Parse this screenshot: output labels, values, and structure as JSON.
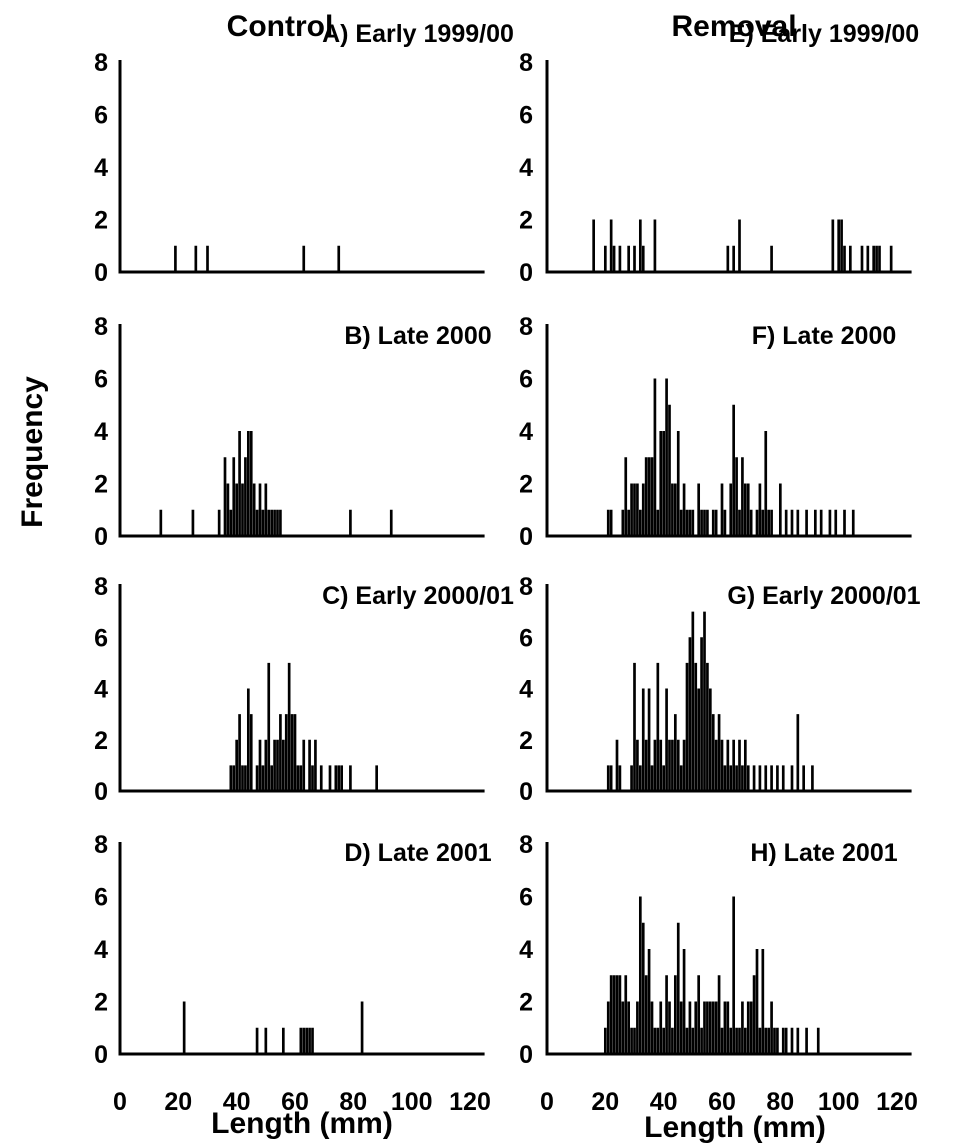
{
  "column_titles": [
    "Control",
    "Removal"
  ],
  "ylabel": "Frequency",
  "xlabel": "Length (mm)",
  "colors": {
    "bar": "#000000",
    "axis": "#000000",
    "background": "#ffffff"
  },
  "chart_data": [
    {
      "type": "bar",
      "label": "A)",
      "title": "Early 1999/00",
      "xlim": [
        0,
        125
      ],
      "ylim": [
        0,
        8
      ],
      "xticks": [
        0,
        20,
        40,
        60,
        80,
        100,
        120
      ],
      "yticks": [
        0,
        2,
        4,
        6,
        8
      ],
      "show_xticks": false,
      "points": [
        [
          19,
          1
        ],
        [
          26,
          1
        ],
        [
          30,
          1
        ],
        [
          63,
          1
        ],
        [
          75,
          1
        ]
      ]
    },
    {
      "type": "bar",
      "label": "B)",
      "title": "Late 2000",
      "xlim": [
        0,
        125
      ],
      "ylim": [
        0,
        8
      ],
      "xticks": [
        0,
        20,
        40,
        60,
        80,
        100,
        120
      ],
      "yticks": [
        0,
        2,
        4,
        6,
        8
      ],
      "show_xticks": false,
      "points": [
        [
          14,
          1
        ],
        [
          25,
          1
        ],
        [
          34,
          1
        ],
        [
          36,
          3
        ],
        [
          37,
          2
        ],
        [
          38,
          1
        ],
        [
          39,
          3
        ],
        [
          40,
          2
        ],
        [
          41,
          4
        ],
        [
          42,
          2
        ],
        [
          43,
          3
        ],
        [
          44,
          4
        ],
        [
          45,
          4
        ],
        [
          46,
          2
        ],
        [
          47,
          1
        ],
        [
          48,
          2
        ],
        [
          49,
          1
        ],
        [
          50,
          2
        ],
        [
          51,
          1
        ],
        [
          52,
          1
        ],
        [
          53,
          1
        ],
        [
          54,
          1
        ],
        [
          55,
          1
        ],
        [
          79,
          1
        ],
        [
          93,
          1
        ]
      ]
    },
    {
      "type": "bar",
      "label": "C)",
      "title": "Early 2000/01",
      "xlim": [
        0,
        125
      ],
      "ylim": [
        0,
        8
      ],
      "xticks": [
        0,
        20,
        40,
        60,
        80,
        100,
        120
      ],
      "yticks": [
        0,
        2,
        4,
        6,
        8
      ],
      "show_xticks": false,
      "points": [
        [
          38,
          1
        ],
        [
          39,
          1
        ],
        [
          40,
          2
        ],
        [
          41,
          3
        ],
        [
          42,
          1
        ],
        [
          43,
          1
        ],
        [
          44,
          4
        ],
        [
          45,
          3
        ],
        [
          47,
          1
        ],
        [
          48,
          2
        ],
        [
          49,
          1
        ],
        [
          50,
          2
        ],
        [
          51,
          5
        ],
        [
          52,
          1
        ],
        [
          53,
          2
        ],
        [
          54,
          2
        ],
        [
          55,
          3
        ],
        [
          56,
          2
        ],
        [
          57,
          3
        ],
        [
          58,
          5
        ],
        [
          59,
          3
        ],
        [
          60,
          3
        ],
        [
          61,
          1
        ],
        [
          62,
          1
        ],
        [
          63,
          2
        ],
        [
          65,
          2
        ],
        [
          66,
          1
        ],
        [
          67,
          2
        ],
        [
          69,
          1
        ],
        [
          72,
          1
        ],
        [
          74,
          1
        ],
        [
          75,
          1
        ],
        [
          76,
          1
        ],
        [
          79,
          1
        ],
        [
          88,
          1
        ]
      ]
    },
    {
      "type": "bar",
      "label": "D)",
      "title": "Late 2001",
      "xlim": [
        0,
        125
      ],
      "ylim": [
        0,
        8
      ],
      "xticks": [
        0,
        20,
        40,
        60,
        80,
        100,
        120
      ],
      "yticks": [
        0,
        2,
        4,
        6,
        8
      ],
      "show_xticks": true,
      "points": [
        [
          22,
          2
        ],
        [
          47,
          1
        ],
        [
          50,
          1
        ],
        [
          56,
          1
        ],
        [
          62,
          1
        ],
        [
          63,
          1
        ],
        [
          64,
          1
        ],
        [
          65,
          1
        ],
        [
          66,
          1
        ],
        [
          83,
          2
        ]
      ]
    },
    {
      "type": "bar",
      "label": "E)",
      "title": "Early 1999/00",
      "xlim": [
        0,
        125
      ],
      "ylim": [
        0,
        8
      ],
      "xticks": [
        0,
        20,
        40,
        60,
        80,
        100,
        120
      ],
      "yticks": [
        0,
        2,
        4,
        6,
        8
      ],
      "show_xticks": false,
      "points": [
        [
          16,
          2
        ],
        [
          20,
          1
        ],
        [
          22,
          2
        ],
        [
          23,
          1
        ],
        [
          25,
          1
        ],
        [
          28,
          1
        ],
        [
          30,
          1
        ],
        [
          32,
          2
        ],
        [
          33,
          1
        ],
        [
          37,
          2
        ],
        [
          62,
          1
        ],
        [
          64,
          1
        ],
        [
          66,
          2
        ],
        [
          77,
          1
        ],
        [
          98,
          2
        ],
        [
          100,
          2
        ],
        [
          101,
          2
        ],
        [
          102,
          1
        ],
        [
          104,
          1
        ],
        [
          108,
          1
        ],
        [
          110,
          1
        ],
        [
          112,
          1
        ],
        [
          113,
          1
        ],
        [
          114,
          1
        ],
        [
          118,
          1
        ]
      ]
    },
    {
      "type": "bar",
      "label": "F)",
      "title": "Late 2000",
      "xlim": [
        0,
        125
      ],
      "ylim": [
        0,
        8
      ],
      "xticks": [
        0,
        20,
        40,
        60,
        80,
        100,
        120
      ],
      "yticks": [
        0,
        2,
        4,
        6,
        8
      ],
      "show_xticks": false,
      "points": [
        [
          21,
          1
        ],
        [
          22,
          1
        ],
        [
          26,
          1
        ],
        [
          27,
          3
        ],
        [
          28,
          1
        ],
        [
          29,
          2
        ],
        [
          30,
          2
        ],
        [
          31,
          2
        ],
        [
          32,
          1
        ],
        [
          33,
          2
        ],
        [
          34,
          3
        ],
        [
          35,
          3
        ],
        [
          36,
          3
        ],
        [
          37,
          6
        ],
        [
          38,
          1
        ],
        [
          39,
          4
        ],
        [
          40,
          4
        ],
        [
          41,
          6
        ],
        [
          42,
          5
        ],
        [
          43,
          2
        ],
        [
          44,
          2
        ],
        [
          45,
          4
        ],
        [
          46,
          1
        ],
        [
          47,
          2
        ],
        [
          48,
          1
        ],
        [
          49,
          1
        ],
        [
          50,
          1
        ],
        [
          52,
          2
        ],
        [
          53,
          1
        ],
        [
          54,
          1
        ],
        [
          55,
          1
        ],
        [
          57,
          1
        ],
        [
          58,
          1
        ],
        [
          60,
          2
        ],
        [
          61,
          1
        ],
        [
          63,
          2
        ],
        [
          64,
          5
        ],
        [
          65,
          3
        ],
        [
          66,
          1
        ],
        [
          67,
          3
        ],
        [
          68,
          2
        ],
        [
          69,
          2
        ],
        [
          70,
          1
        ],
        [
          72,
          1
        ],
        [
          73,
          2
        ],
        [
          74,
          1
        ],
        [
          75,
          4
        ],
        [
          76,
          1
        ],
        [
          77,
          1
        ],
        [
          80,
          2
        ],
        [
          82,
          1
        ],
        [
          84,
          1
        ],
        [
          86,
          1
        ],
        [
          89,
          1
        ],
        [
          92,
          1
        ],
        [
          94,
          1
        ],
        [
          97,
          1
        ],
        [
          99,
          1
        ],
        [
          102,
          1
        ],
        [
          105,
          1
        ]
      ]
    },
    {
      "type": "bar",
      "label": "G)",
      "title": "Early 2000/01",
      "xlim": [
        0,
        125
      ],
      "ylim": [
        0,
        8
      ],
      "xticks": [
        0,
        20,
        40,
        60,
        80,
        100,
        120
      ],
      "yticks": [
        0,
        2,
        4,
        6,
        8
      ],
      "show_xticks": false,
      "points": [
        [
          21,
          1
        ],
        [
          22,
          1
        ],
        [
          24,
          2
        ],
        [
          25,
          1
        ],
        [
          29,
          1
        ],
        [
          30,
          5
        ],
        [
          31,
          2
        ],
        [
          32,
          1
        ],
        [
          33,
          4
        ],
        [
          34,
          2
        ],
        [
          35,
          4
        ],
        [
          36,
          1
        ],
        [
          37,
          2
        ],
        [
          38,
          5
        ],
        [
          39,
          2
        ],
        [
          40,
          1
        ],
        [
          41,
          4
        ],
        [
          42,
          2
        ],
        [
          43,
          2
        ],
        [
          44,
          3
        ],
        [
          45,
          2
        ],
        [
          46,
          1
        ],
        [
          47,
          2
        ],
        [
          48,
          5
        ],
        [
          49,
          6
        ],
        [
          50,
          7
        ],
        [
          51,
          5
        ],
        [
          52,
          4
        ],
        [
          53,
          6
        ],
        [
          54,
          7
        ],
        [
          55,
          5
        ],
        [
          56,
          4
        ],
        [
          57,
          3
        ],
        [
          58,
          2
        ],
        [
          59,
          3
        ],
        [
          60,
          2
        ],
        [
          61,
          1
        ],
        [
          62,
          2
        ],
        [
          63,
          1
        ],
        [
          64,
          2
        ],
        [
          65,
          1
        ],
        [
          66,
          2
        ],
        [
          67,
          1
        ],
        [
          68,
          2
        ],
        [
          69,
          1
        ],
        [
          71,
          1
        ],
        [
          73,
          1
        ],
        [
          75,
          1
        ],
        [
          77,
          1
        ],
        [
          79,
          1
        ],
        [
          81,
          1
        ],
        [
          84,
          1
        ],
        [
          86,
          3
        ],
        [
          88,
          1
        ],
        [
          91,
          1
        ]
      ]
    },
    {
      "type": "bar",
      "label": "H)",
      "title": "Late 2001",
      "xlim": [
        0,
        125
      ],
      "ylim": [
        0,
        8
      ],
      "xticks": [
        0,
        20,
        40,
        60,
        80,
        100,
        120
      ],
      "yticks": [
        0,
        2,
        4,
        6,
        8
      ],
      "show_xticks": true,
      "points": [
        [
          20,
          1
        ],
        [
          21,
          2
        ],
        [
          22,
          3
        ],
        [
          23,
          3
        ],
        [
          24,
          3
        ],
        [
          25,
          3
        ],
        [
          26,
          2
        ],
        [
          27,
          3
        ],
        [
          28,
          2
        ],
        [
          29,
          1
        ],
        [
          30,
          1
        ],
        [
          31,
          2
        ],
        [
          32,
          6
        ],
        [
          33,
          5
        ],
        [
          34,
          3
        ],
        [
          35,
          4
        ],
        [
          36,
          2
        ],
        [
          37,
          1
        ],
        [
          38,
          1
        ],
        [
          39,
          2
        ],
        [
          40,
          1
        ],
        [
          41,
          3
        ],
        [
          42,
          2
        ],
        [
          43,
          1
        ],
        [
          44,
          3
        ],
        [
          45,
          5
        ],
        [
          46,
          2
        ],
        [
          47,
          4
        ],
        [
          48,
          1
        ],
        [
          49,
          2
        ],
        [
          50,
          1
        ],
        [
          51,
          2
        ],
        [
          52,
          3
        ],
        [
          53,
          1
        ],
        [
          54,
          2
        ],
        [
          55,
          2
        ],
        [
          56,
          2
        ],
        [
          57,
          2
        ],
        [
          58,
          2
        ],
        [
          59,
          3
        ],
        [
          60,
          1
        ],
        [
          61,
          2
        ],
        [
          62,
          2
        ],
        [
          63,
          1
        ],
        [
          64,
          6
        ],
        [
          65,
          1
        ],
        [
          66,
          1
        ],
        [
          67,
          2
        ],
        [
          68,
          1
        ],
        [
          69,
          2
        ],
        [
          70,
          2
        ],
        [
          71,
          3
        ],
        [
          72,
          4
        ],
        [
          73,
          1
        ],
        [
          74,
          4
        ],
        [
          75,
          1
        ],
        [
          76,
          1
        ],
        [
          77,
          2
        ],
        [
          78,
          1
        ],
        [
          79,
          1
        ],
        [
          81,
          1
        ],
        [
          82,
          1
        ],
        [
          84,
          1
        ],
        [
          86,
          1
        ],
        [
          89,
          1
        ],
        [
          93,
          1
        ]
      ]
    }
  ]
}
